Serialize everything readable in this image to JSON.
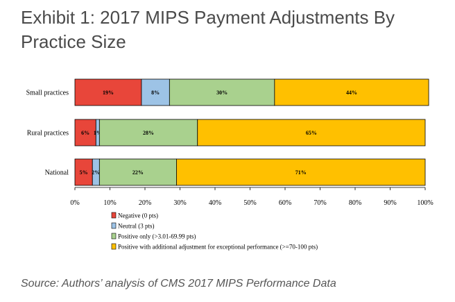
{
  "title": "Exhibit 1: 2017 MIPS Payment Adjustments By Practice Size",
  "source": "Source: Authors’ analysis of CMS 2017 MIPS Performance Data",
  "chart_data": {
    "type": "bar",
    "orientation": "horizontal",
    "stacked": true,
    "categories": [
      "Small practices",
      "Rural practices",
      "National"
    ],
    "series": [
      {
        "name": "Negative (0 pts)",
        "color": "#e8463a",
        "values": [
          19,
          6,
          5
        ],
        "labels": [
          "19%",
          "6%",
          "5%"
        ]
      },
      {
        "name": "Neutral (3 pts)",
        "color": "#9dc3e6",
        "values": [
          8,
          1,
          2
        ],
        "labels": [
          "8%",
          "1%",
          "2%"
        ]
      },
      {
        "name": "Positive only (>3.01-69.99 pts)",
        "color": "#a9d18e",
        "values": [
          30,
          28,
          22
        ],
        "labels": [
          "30%",
          "28%",
          "22%"
        ]
      },
      {
        "name": "Positive with additional adjustment for exceptional performance (>=70-100 pts)",
        "color": "#ffc000",
        "values": [
          44,
          65,
          71
        ],
        "labels": [
          "44%",
          "65%",
          "71%"
        ]
      }
    ],
    "xlim": [
      0,
      100
    ],
    "xticks": [
      "0%",
      "10%",
      "20%",
      "30%",
      "40%",
      "50%",
      "60%",
      "70%",
      "80%",
      "90%",
      "100%"
    ],
    "legend_position": "bottom"
  }
}
